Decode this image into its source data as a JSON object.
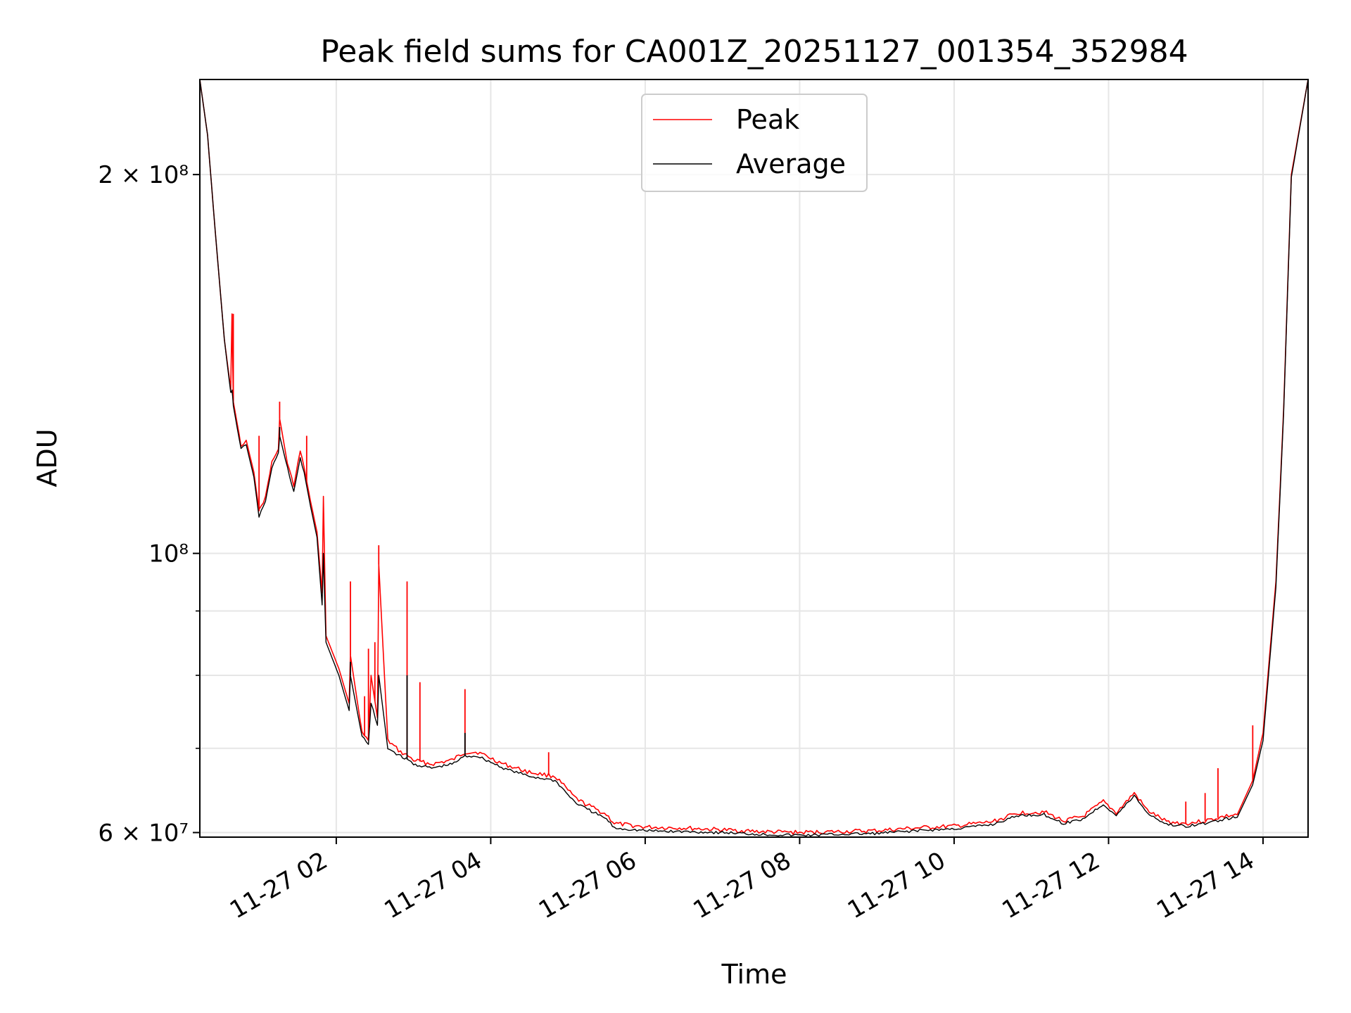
{
  "chart_data": {
    "type": "line",
    "title": "Peak field sums for CA001Z_20251127_001354_352984",
    "xlabel": "Time",
    "ylabel": "ADU",
    "yscale": "log",
    "xlim": [
      "2025-11-27 00:14",
      "2025-11-27 14:35"
    ],
    "ylim": [
      59500000,
      238000000
    ],
    "grid": true,
    "legend_position": "upper center",
    "x_ticks": [
      "11-27 02",
      "11-27 04",
      "11-27 06",
      "11-27 08",
      "11-27 10",
      "11-27 12",
      "11-27 14"
    ],
    "y_ticks": [
      "2 × 10⁸",
      "10⁸",
      "6 × 10⁷"
    ],
    "series": [
      {
        "name": "Peak",
        "color": "#ff0000",
        "x": [
          "2025-11-27 00:14",
          "2025-11-27 00:20",
          "2025-11-27 00:26",
          "2025-11-27 00:33",
          "2025-11-27 00:38",
          "2025-11-27 00:39",
          "2025-11-27 00:40",
          "2025-11-27 00:46",
          "2025-11-27 00:50",
          "2025-11-27 00:56",
          "2025-11-27 01:00",
          "2025-11-27 01:05",
          "2025-11-27 01:10",
          "2025-11-27 01:15",
          "2025-11-27 01:16",
          "2025-11-27 01:22",
          "2025-11-27 01:27",
          "2025-11-27 01:32",
          "2025-11-27 01:35",
          "2025-11-27 01:40",
          "2025-11-27 01:45",
          "2025-11-27 01:49",
          "2025-11-27 01:50",
          "2025-11-27 01:52",
          "2025-11-27 02:02",
          "2025-11-27 02:10",
          "2025-11-27 02:11",
          "2025-11-27 02:20",
          "2025-11-27 02:25",
          "2025-11-27 02:27",
          "2025-11-27 02:32",
          "2025-11-27 02:33",
          "2025-11-27 02:40",
          "2025-11-27 02:50",
          "2025-11-27 02:56",
          "2025-11-27 03:00",
          "2025-11-27 03:14",
          "2025-11-27 03:30",
          "2025-11-27 03:40",
          "2025-11-27 03:50",
          "2025-11-27 04:10",
          "2025-11-27 04:30",
          "2025-11-27 04:50",
          "2025-11-27 05:05",
          "2025-11-27 05:10",
          "2025-11-27 05:30",
          "2025-11-27 05:36",
          "2025-11-27 06:00",
          "2025-11-27 06:30",
          "2025-11-27 07:00",
          "2025-11-27 07:30",
          "2025-11-27 08:00",
          "2025-11-27 08:30",
          "2025-11-27 09:00",
          "2025-11-27 09:30",
          "2025-11-27 10:00",
          "2025-11-27 10:30",
          "2025-11-27 10:50",
          "2025-11-27 11:10",
          "2025-11-27 11:25",
          "2025-11-27 11:40",
          "2025-11-27 11:56",
          "2025-11-27 12:06",
          "2025-11-27 12:20",
          "2025-11-27 12:30",
          "2025-11-27 12:45",
          "2025-11-27 13:00",
          "2025-11-27 13:15",
          "2025-11-27 13:30",
          "2025-11-27 13:40",
          "2025-11-27 13:52",
          "2025-11-27 14:00",
          "2025-11-27 14:10",
          "2025-11-27 14:16",
          "2025-11-27 14:22",
          "2025-11-27 14:35"
        ],
        "y": [
          238000000,
          215000000,
          180000000,
          148000000,
          135000000,
          155000000,
          132000000,
          122000000,
          123000000,
          116000000,
          108000000,
          111000000,
          118000000,
          121000000,
          128000000,
          118000000,
          113000000,
          121000000,
          117000000,
          110000000,
          104000000,
          93000000,
          111000000,
          86000000,
          81000000,
          76000000,
          83000000,
          72000000,
          71000000,
          80000000,
          74000000,
          98000000,
          71000000,
          69500000,
          69000000,
          68500000,
          68000000,
          68500000,
          69500000,
          69500000,
          68000000,
          67000000,
          66500000,
          64000000,
          63500000,
          62000000,
          61000000,
          60600000,
          60500000,
          60300000,
          60100000,
          60000000,
          60100000,
          60200000,
          60500000,
          60700000,
          61200000,
          62200000,
          62300000,
          61300000,
          61800000,
          63500000,
          62200000,
          64500000,
          62500000,
          61200000,
          61000000,
          61300000,
          61800000,
          62000000,
          66000000,
          72000000,
          95000000,
          130000000,
          200000000,
          238000000
        ],
        "spikes": [
          {
            "x": "2025-11-27 00:40",
            "y": 155000000
          },
          {
            "x": "2025-11-27 01:00",
            "y": 124000000
          },
          {
            "x": "2025-11-27 01:16",
            "y": 132000000
          },
          {
            "x": "2025-11-27 01:37",
            "y": 124000000
          },
          {
            "x": "2025-11-27 01:50",
            "y": 111000000
          },
          {
            "x": "2025-11-27 02:11",
            "y": 95000000
          },
          {
            "x": "2025-11-27 02:22",
            "y": 77000000
          },
          {
            "x": "2025-11-27 02:25",
            "y": 84000000
          },
          {
            "x": "2025-11-27 02:30",
            "y": 85000000
          },
          {
            "x": "2025-11-27 02:33",
            "y": 101500000
          },
          {
            "x": "2025-11-27 02:55",
            "y": 95000000
          },
          {
            "x": "2025-11-27 03:05",
            "y": 79000000
          },
          {
            "x": "2025-11-27 03:40",
            "y": 78000000
          },
          {
            "x": "2025-11-27 04:45",
            "y": 69500000
          },
          {
            "x": "2025-11-27 13:00",
            "y": 63500000
          },
          {
            "x": "2025-11-27 13:15",
            "y": 64500000
          },
          {
            "x": "2025-11-27 13:25",
            "y": 67500000
          },
          {
            "x": "2025-11-27 13:52",
            "y": 73000000
          }
        ]
      },
      {
        "name": "Average",
        "color": "#000000",
        "x": [
          "2025-11-27 00:14",
          "2025-11-27 00:20",
          "2025-11-27 00:26",
          "2025-11-27 00:33",
          "2025-11-27 00:38",
          "2025-11-27 00:39",
          "2025-11-27 00:40",
          "2025-11-27 00:46",
          "2025-11-27 00:50",
          "2025-11-27 00:56",
          "2025-11-27 01:00",
          "2025-11-27 01:05",
          "2025-11-27 01:10",
          "2025-11-27 01:15",
          "2025-11-27 01:16",
          "2025-11-27 01:22",
          "2025-11-27 01:27",
          "2025-11-27 01:32",
          "2025-11-27 01:35",
          "2025-11-27 01:40",
          "2025-11-27 01:45",
          "2025-11-27 01:49",
          "2025-11-27 01:50",
          "2025-11-27 01:52",
          "2025-11-27 02:02",
          "2025-11-27 02:10",
          "2025-11-27 02:11",
          "2025-11-27 02:20",
          "2025-11-27 02:25",
          "2025-11-27 02:27",
          "2025-11-27 02:32",
          "2025-11-27 02:33",
          "2025-11-27 02:40",
          "2025-11-27 02:50",
          "2025-11-27 02:56",
          "2025-11-27 03:00",
          "2025-11-27 03:14",
          "2025-11-27 03:30",
          "2025-11-27 03:40",
          "2025-11-27 03:50",
          "2025-11-27 04:10",
          "2025-11-27 04:30",
          "2025-11-27 04:50",
          "2025-11-27 05:05",
          "2025-11-27 05:10",
          "2025-11-27 05:30",
          "2025-11-27 05:36",
          "2025-11-27 06:00",
          "2025-11-27 06:30",
          "2025-11-27 07:00",
          "2025-11-27 07:30",
          "2025-11-27 08:00",
          "2025-11-27 08:30",
          "2025-11-27 09:00",
          "2025-11-27 09:30",
          "2025-11-27 10:00",
          "2025-11-27 10:30",
          "2025-11-27 10:50",
          "2025-11-27 11:10",
          "2025-11-27 11:25",
          "2025-11-27 11:40",
          "2025-11-27 11:56",
          "2025-11-27 12:06",
          "2025-11-27 12:20",
          "2025-11-27 12:30",
          "2025-11-27 12:45",
          "2025-11-27 13:00",
          "2025-11-27 13:15",
          "2025-11-27 13:30",
          "2025-11-27 13:40",
          "2025-11-27 13:52",
          "2025-11-27 14:00",
          "2025-11-27 14:10",
          "2025-11-27 14:16",
          "2025-11-27 14:22",
          "2025-11-27 14:35"
        ],
        "y": [
          238000000,
          215000000,
          180000000,
          148000000,
          134000000,
          135000000,
          131000000,
          121000000,
          122000000,
          115000000,
          107000000,
          110000000,
          117000000,
          120000000,
          124000000,
          117000000,
          112000000,
          119000000,
          116000000,
          109000000,
          103000000,
          91000000,
          100000000,
          85000000,
          80000000,
          75000000,
          80000000,
          71500000,
          70500000,
          76000000,
          73000000,
          80000000,
          70000000,
          69000000,
          68500000,
          68000000,
          67500000,
          68000000,
          69000000,
          69000000,
          67500000,
          66500000,
          66000000,
          63500000,
          63000000,
          61500000,
          60500000,
          60200000,
          60100000,
          60000000,
          59800000,
          59700000,
          59800000,
          59900000,
          60200000,
          60400000,
          60900000,
          61900000,
          62000000,
          61000000,
          61500000,
          63200000,
          61900000,
          64200000,
          62200000,
          60900000,
          60700000,
          61000000,
          61500000,
          61700000,
          65500000,
          71000000,
          94000000,
          129000000,
          199000000,
          238000000
        ],
        "spikes": [
          {
            "x": "2025-11-27 01:16",
            "y": 126000000
          },
          {
            "x": "2025-11-27 02:11",
            "y": 82000000
          },
          {
            "x": "2025-11-27 02:55",
            "y": 80000000
          },
          {
            "x": "2025-11-27 03:40",
            "y": 72000000
          }
        ]
      }
    ]
  }
}
